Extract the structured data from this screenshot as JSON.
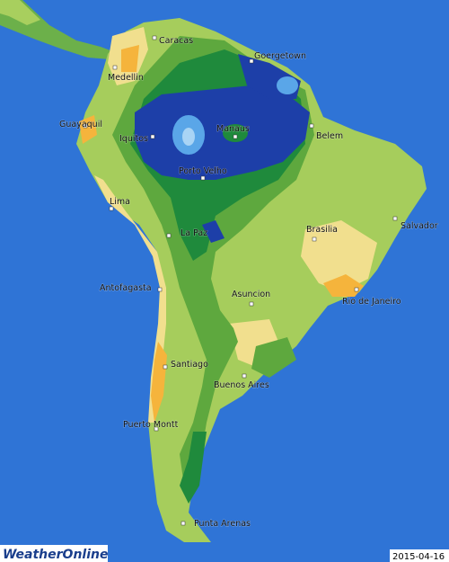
{
  "map": {
    "cities": [
      "Caracas",
      "Goergetown",
      "Medellin",
      "Guayaquil",
      "Iquitos",
      "Manaus",
      "Belem",
      "Porto Velho",
      "Lima",
      "Salvador",
      "Brasilia",
      "La Paz",
      "Antofagasta",
      "Asuncion",
      "Rio de Janeiro",
      "Santiago",
      "Buenos Aires",
      "Puerto Montt",
      "Punta Arenas"
    ]
  },
  "logo": "WeatherOnline",
  "date": "2015-04-16"
}
